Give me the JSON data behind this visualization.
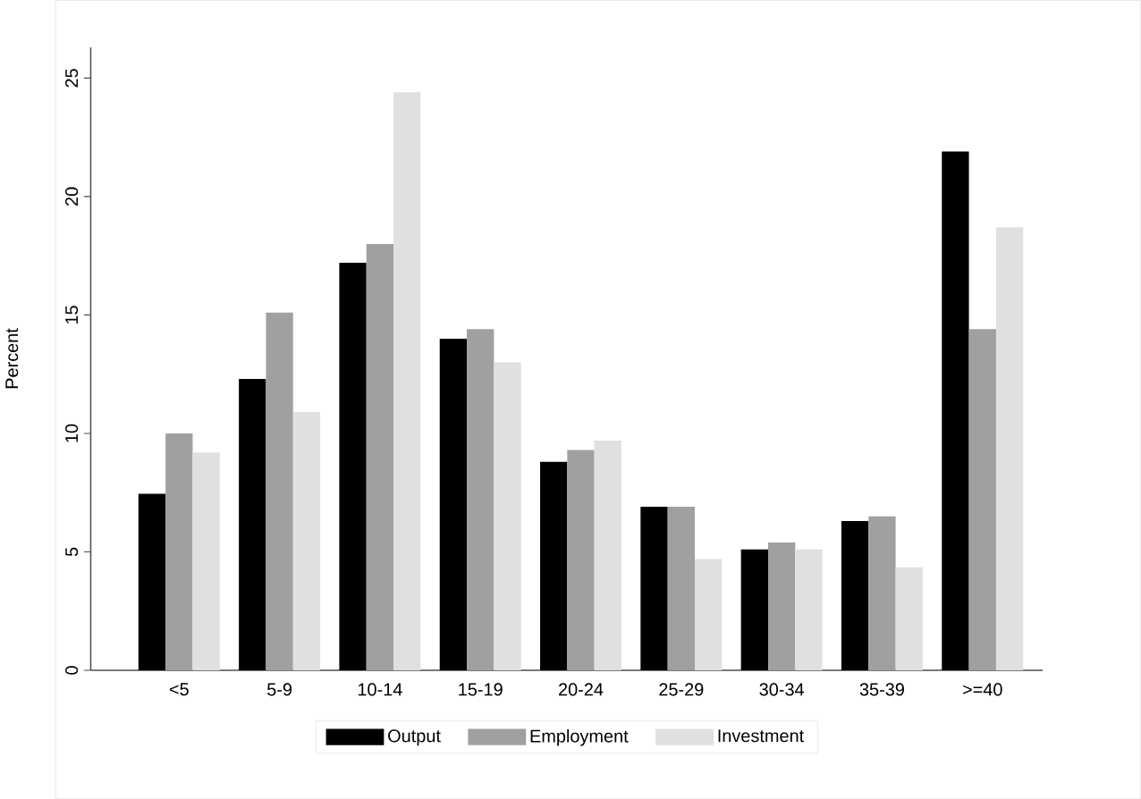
{
  "chart_data": {
    "type": "bar",
    "ylabel": "Percent",
    "categories": [
      "<5",
      "5-9",
      "10-14",
      "15-19",
      "20-24",
      "25-29",
      "30-34",
      "35-39",
      ">=40"
    ],
    "series": [
      {
        "name": "Output",
        "color": "#000000",
        "values": [
          7.45,
          12.3,
          17.2,
          14.0,
          8.8,
          6.9,
          5.1,
          6.3,
          21.9
        ]
      },
      {
        "name": "Employment",
        "color": "#a0a0a0",
        "values": [
          10.0,
          15.1,
          18.0,
          14.4,
          9.3,
          6.9,
          5.4,
          6.5,
          14.4
        ]
      },
      {
        "name": "Investment",
        "color": "#e0e0e0",
        "values": [
          9.2,
          10.9,
          24.4,
          13.0,
          9.7,
          4.7,
          5.1,
          4.35,
          18.7
        ]
      }
    ],
    "ylim": [
      0,
      26.3
    ],
    "yticks": [
      0,
      5,
      10,
      15,
      20,
      25
    ],
    "grid": false,
    "legend": "bottom"
  }
}
